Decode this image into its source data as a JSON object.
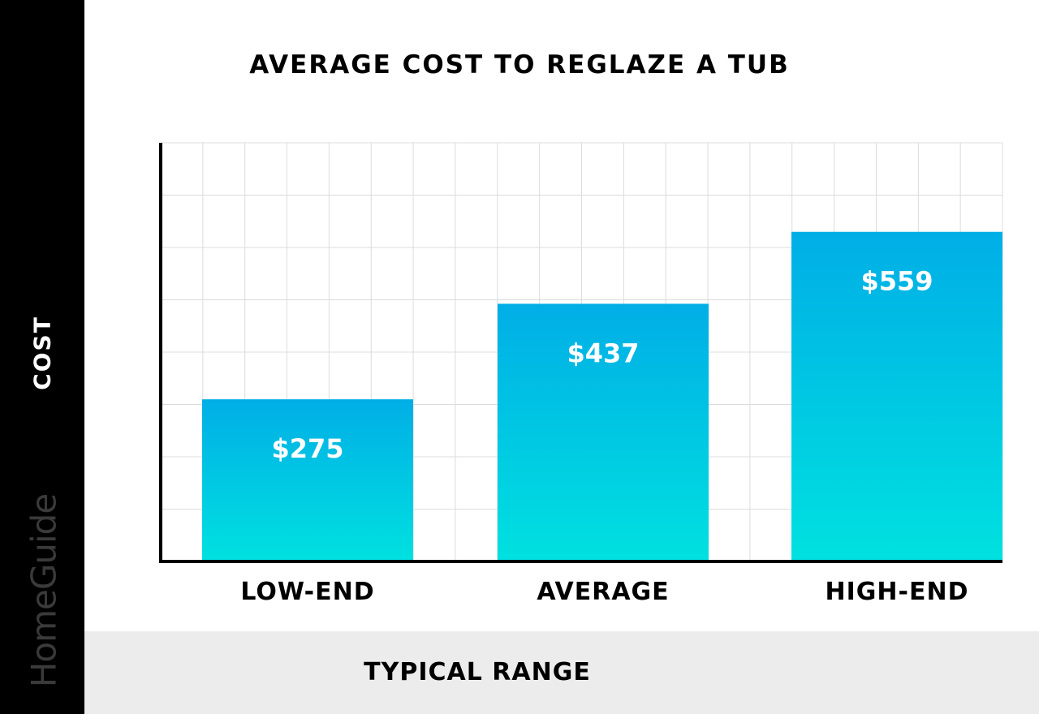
{
  "chart_data": {
    "type": "bar",
    "title": "AVERAGE COST TO REGLAZE A TUB",
    "xlabel": "TYPICAL RANGE",
    "ylabel": "COST",
    "categories": [
      "LOW-END",
      "AVERAGE",
      "HIGH-END"
    ],
    "values": [
      275,
      437,
      559
    ],
    "value_labels": [
      "$275",
      "$437",
      "$559"
    ],
    "ylim": [
      0,
      710
    ],
    "grid": true,
    "legend": "none"
  },
  "brand": {
    "name": "HomeGuide"
  },
  "colors": {
    "bar_top": "#00aee6",
    "bar_bottom": "#00e1e0",
    "grid": "#dcdcdc",
    "axis": "#000000"
  }
}
